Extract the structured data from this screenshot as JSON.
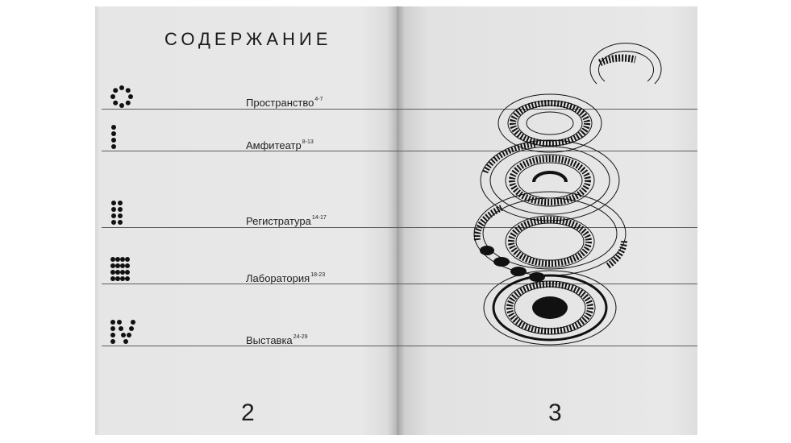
{
  "contents": {
    "title": "СОДЕРЖАНИЕ",
    "entries": [
      {
        "label": "Пространство",
        "pages": "4-7",
        "icon": "ring-of-dots-icon"
      },
      {
        "label": "Амфитеатр",
        "pages": "8-13",
        "icon": "single-column-dots-icon"
      },
      {
        "label": "Регистратура",
        "pages": "14-17",
        "icon": "two-column-dots-icon"
      },
      {
        "label": "Лаборатория",
        "pages": "18-23",
        "icon": "dot-grid-icon"
      },
      {
        "label": "Выставка",
        "pages": "24-29",
        "icon": "roman-four-dots-icon"
      }
    ]
  },
  "page_numbers": {
    "left": "2",
    "right": "3"
  },
  "colors": {
    "paper": "#e7e7e7",
    "ink": "#111111",
    "rule": "#5c5c5c"
  }
}
